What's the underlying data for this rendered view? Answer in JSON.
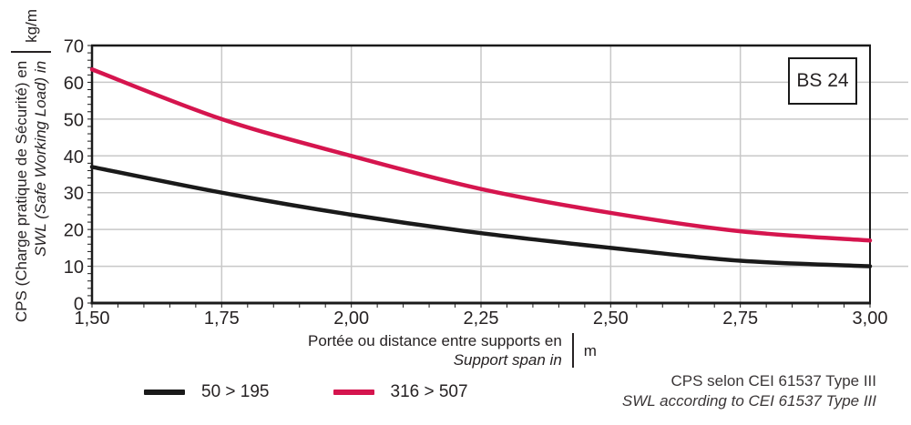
{
  "title_box": "BS 24",
  "y_axis": {
    "label_fr": "CPS (Charge pratique de Sécurité) en",
    "label_en": "SWL (Safe Working Load) in",
    "unit": "kg/m"
  },
  "x_axis": {
    "label_fr": "Portée ou distance entre supports en",
    "label_en": "Support span in",
    "unit": "m"
  },
  "legend": [
    {
      "label": "50 > 195",
      "color": "#1a1a1a"
    },
    {
      "label": "316 > 507",
      "color": "#d5154e"
    }
  ],
  "footnote": {
    "line1": "CPS selon CEI 61537 Type III",
    "line2": "SWL according to CEI 61537 Type III"
  },
  "chart_data": {
    "type": "line",
    "x": [
      1.5,
      1.75,
      2.0,
      2.25,
      2.5,
      2.75,
      3.0
    ],
    "series": [
      {
        "name": "50 > 195",
        "color": "#1a1a1a",
        "values": [
          37,
          30,
          24,
          19,
          15,
          11.5,
          10
        ]
      },
      {
        "name": "316 > 507",
        "color": "#d5154e",
        "values": [
          63.5,
          50,
          40,
          31,
          24.5,
          19.5,
          17
        ]
      }
    ],
    "xlim": [
      1.5,
      3.0
    ],
    "ylim": [
      0,
      70
    ],
    "xticks": [
      "1,50",
      "1,75",
      "2,00",
      "2,25",
      "2,50",
      "2,75",
      "3,00"
    ],
    "yticks": [
      0,
      10,
      20,
      30,
      40,
      50,
      60,
      70
    ],
    "x_minor_step": 0.05,
    "y_minor_step": 2,
    "grid": true,
    "grid_color": "#c8c8c8",
    "axis_color": "#1a1a1a",
    "tick_label_color": "#262223",
    "legend_position": "bottom"
  }
}
